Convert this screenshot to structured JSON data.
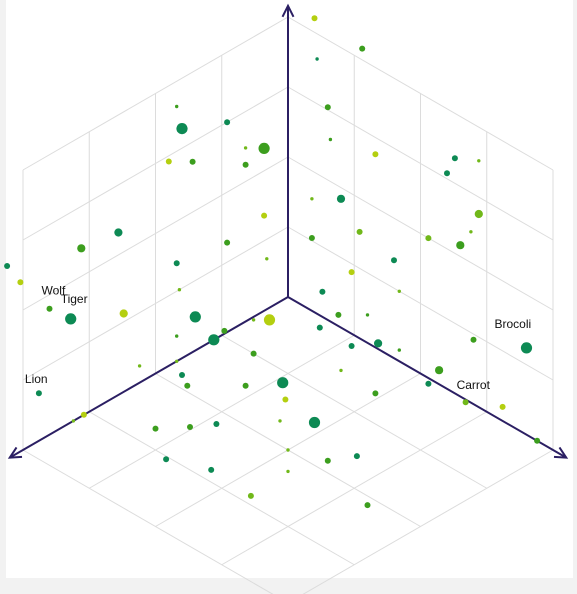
{
  "chart_data": {
    "type": "scatter",
    "projection": "3d-isometric",
    "title": "",
    "grid": true,
    "colors": {
      "axis": "#2b1f63",
      "grid": "#dcdcdc",
      "label": "#111111",
      "series": [
        "#0d8a54",
        "#3c9e1e",
        "#71b81a",
        "#b4cf10"
      ]
    },
    "labels": [
      {
        "text": "Wolf",
        "point": 1
      },
      {
        "text": "Tiger",
        "point": 2
      },
      {
        "text": "Lion",
        "point": 3
      },
      {
        "text": "Brocoli",
        "point": 4
      },
      {
        "text": "Carrot",
        "point": 5
      }
    ],
    "points": [
      {
        "x": 9.6,
        "y": -0.5,
        "z": 5.5,
        "size": 1,
        "color": 3
      },
      {
        "x": 9.0,
        "y": 0.0,
        "z": 4.5,
        "size": 1,
        "color": 1
      },
      {
        "x": 8.2,
        "y": 0.0,
        "z": 3.7,
        "size": 3,
        "color": 0
      },
      {
        "x": 9.4,
        "y": 0.0,
        "z": 1.7,
        "size": 1,
        "color": 0
      },
      {
        "x": 0.0,
        "y": 9.0,
        "z": 3.1,
        "size": 3,
        "color": 0
      },
      {
        "x": 0.0,
        "y": 8.1,
        "z": 0.5,
        "size": 1,
        "color": 3
      },
      {
        "x": 10.6,
        "y": 0.0,
        "z": 6.9,
        "size": 1,
        "color": 0
      },
      {
        "x": 7.8,
        "y": 0.0,
        "z": 6.0,
        "size": 2,
        "color": 1
      },
      {
        "x": 6.4,
        "y": 0.0,
        "z": 5.8,
        "size": 2,
        "color": 0
      },
      {
        "x": 6.2,
        "y": 0.0,
        "z": 2.8,
        "size": 2,
        "color": 3
      },
      {
        "x": 4.0,
        "y": 0.0,
        "z": 8.2,
        "size": 3,
        "color": 0
      },
      {
        "x": 4.2,
        "y": 0.0,
        "z": 9.1,
        "size": 0,
        "color": 1
      },
      {
        "x": 3.6,
        "y": 0.0,
        "z": 6.8,
        "size": 1,
        "color": 1
      },
      {
        "x": 4.5,
        "y": 0.0,
        "z": 7.3,
        "size": 1,
        "color": 3
      },
      {
        "x": 2.3,
        "y": 0.0,
        "z": 7.5,
        "size": 1,
        "color": 0
      },
      {
        "x": 1.6,
        "y": 0.0,
        "z": 6.2,
        "size": 0,
        "color": 2
      },
      {
        "x": 0.9,
        "y": 0.0,
        "z": 5.8,
        "size": 3,
        "color": 1
      },
      {
        "x": 1.6,
        "y": 0.0,
        "z": 5.6,
        "size": 1,
        "color": 1
      },
      {
        "x": 4.2,
        "y": 0.0,
        "z": 3.5,
        "size": 1,
        "color": 0
      },
      {
        "x": 4.1,
        "y": 0.0,
        "z": 2.5,
        "size": 0,
        "color": 2
      },
      {
        "x": 2.3,
        "y": 0.0,
        "z": 3.2,
        "size": 1,
        "color": 1
      },
      {
        "x": 0.9,
        "y": 0.0,
        "z": 3.4,
        "size": 1,
        "color": 3
      },
      {
        "x": 0.8,
        "y": 0.0,
        "z": 1.8,
        "size": 0,
        "color": 2
      },
      {
        "x": 3.5,
        "y": 0.0,
        "z": 1.2,
        "size": 3,
        "color": 0
      },
      {
        "x": 5.6,
        "y": 0.0,
        "z": 0.6,
        "size": 0,
        "color": 2
      },
      {
        "x": 4.2,
        "y": 0.0,
        "z": 0.9,
        "size": 0,
        "color": 1
      },
      {
        "x": 2.4,
        "y": 0.0,
        "z": 0.1,
        "size": 1,
        "color": 1
      },
      {
        "x": 4.0,
        "y": 0.0,
        "z": -0.6,
        "size": 1,
        "color": 0
      },
      {
        "x": 0.0,
        "y": 1.0,
        "z": 10.5,
        "size": 1,
        "color": 3
      },
      {
        "x": 0.0,
        "y": 2.8,
        "z": 10.4,
        "size": 1,
        "color": 1
      },
      {
        "x": 0.0,
        "y": 1.1,
        "z": 9.1,
        "size": 0,
        "color": 0
      },
      {
        "x": 0.0,
        "y": 1.5,
        "z": 7.6,
        "size": 1,
        "color": 1
      },
      {
        "x": 0.0,
        "y": 1.6,
        "z": 6.5,
        "size": 0,
        "color": 1
      },
      {
        "x": 0.0,
        "y": 3.3,
        "z": 6.9,
        "size": 1,
        "color": 3
      },
      {
        "x": 0.0,
        "y": 6.0,
        "z": 7.7,
        "size": 1,
        "color": 0
      },
      {
        "x": 0.0,
        "y": 6.9,
        "z": 6.1,
        "size": 0,
        "color": 2
      },
      {
        "x": 0.0,
        "y": 5.3,
        "z": 5.0,
        "size": 1,
        "color": 2
      },
      {
        "x": 0.0,
        "y": 6.5,
        "z": 5.4,
        "size": 2,
        "color": 1
      },
      {
        "x": 0.0,
        "y": 2.0,
        "z": 4.6,
        "size": 2,
        "color": 0
      },
      {
        "x": 0.0,
        "y": 0.9,
        "z": 4.0,
        "size": 0,
        "color": 2
      },
      {
        "x": 0.0,
        "y": 2.7,
        "z": 3.8,
        "size": 1,
        "color": 2
      },
      {
        "x": 0.0,
        "y": 4.0,
        "z": 3.5,
        "size": 1,
        "color": 0
      },
      {
        "x": 0.0,
        "y": 0.9,
        "z": 2.6,
        "size": 1,
        "color": 1
      },
      {
        "x": 0.0,
        "y": 2.4,
        "z": 2.2,
        "size": 1,
        "color": 3
      },
      {
        "x": 0.0,
        "y": 4.2,
        "z": 2.5,
        "size": 0,
        "color": 2
      },
      {
        "x": 0.0,
        "y": 3.0,
        "z": 1.0,
        "size": 0,
        "color": 1
      },
      {
        "x": 0.0,
        "y": 1.3,
        "z": 0.9,
        "size": 1,
        "color": 0
      },
      {
        "x": 0.0,
        "y": 1.9,
        "z": 0.4,
        "size": 1,
        "color": 1
      },
      {
        "x": 0.0,
        "y": 3.4,
        "z": 0.2,
        "size": 2,
        "color": 0
      },
      {
        "x": 0.0,
        "y": 4.2,
        "z": 0.4,
        "size": 0,
        "color": 1
      },
      {
        "x": 0.0,
        "y": 5.7,
        "z": 0.5,
        "size": 2,
        "color": 1
      },
      {
        "x": 0.0,
        "y": 5.3,
        "z": -0.2,
        "size": 1,
        "color": 0
      },
      {
        "x": 0.0,
        "y": 6.7,
        "z": -0.1,
        "size": 1,
        "color": 2
      },
      {
        "x": 0.0,
        "y": 9.4,
        "z": 0.0,
        "size": 1,
        "color": 1
      },
      {
        "x": 0.0,
        "y": 7.0,
        "z": 2.3,
        "size": 1,
        "color": 1
      },
      {
        "x": 0.0,
        "y": 7.2,
        "z": 6.9,
        "size": 2,
        "color": 2
      },
      {
        "x": 0.0,
        "y": 6.3,
        "z": 8.4,
        "size": 1,
        "color": 0
      },
      {
        "x": 0.0,
        "y": 7.2,
        "z": 8.8,
        "size": 0,
        "color": 2
      },
      {
        "x": 1.1,
        "y": 0.4,
        "z": 0.0,
        "size": 3,
        "color": 3
      },
      {
        "x": 0.4,
        "y": 1.6,
        "z": 0.0,
        "size": 1,
        "color": 0
      },
      {
        "x": 1.4,
        "y": 0.1,
        "z": 0.0,
        "size": 0,
        "color": 2
      },
      {
        "x": 0.4,
        "y": 2.8,
        "z": 0.0,
        "size": 1,
        "color": 0
      },
      {
        "x": 2.8,
        "y": 0.0,
        "z": 0.0,
        "size": 3,
        "color": 0
      },
      {
        "x": 2.5,
        "y": 1.2,
        "z": 0.0,
        "size": 1,
        "color": 1
      },
      {
        "x": 1.4,
        "y": 3.4,
        "z": 0.0,
        "size": 0,
        "color": 2
      },
      {
        "x": 1.5,
        "y": 4.8,
        "z": 0.0,
        "size": 1,
        "color": 1
      },
      {
        "x": 2.9,
        "y": 2.7,
        "z": 0.0,
        "size": 3,
        "color": 0
      },
      {
        "x": 3.7,
        "y": 2.1,
        "z": 0.0,
        "size": 1,
        "color": 1
      },
      {
        "x": 4.2,
        "y": 0.0,
        "z": 0.0,
        "size": 0,
        "color": 2
      },
      {
        "x": 4.8,
        "y": 1.0,
        "z": 0.0,
        "size": 1,
        "color": 1
      },
      {
        "x": 3.6,
        "y": 4.6,
        "z": 0.0,
        "size": 3,
        "color": 0
      },
      {
        "x": 3.4,
        "y": 3.3,
        "z": 0.0,
        "size": 1,
        "color": 3
      },
      {
        "x": 4.2,
        "y": 3.9,
        "z": 0.0,
        "size": 0,
        "color": 2
      },
      {
        "x": 3.9,
        "y": 6.5,
        "z": 0.0,
        "size": 1,
        "color": 0
      },
      {
        "x": 4.6,
        "y": 6.1,
        "z": 0.0,
        "size": 1,
        "color": 1
      },
      {
        "x": 5.5,
        "y": 2.8,
        "z": 0.0,
        "size": 1,
        "color": 0
      },
      {
        "x": 5.0,
        "y": 5.0,
        "z": 0.0,
        "size": 0,
        "color": 2
      },
      {
        "x": 6.1,
        "y": 2.4,
        "z": 0.0,
        "size": 1,
        "color": 1
      },
      {
        "x": 5.3,
        "y": 8.3,
        "z": 0.0,
        "size": 1,
        "color": 1
      },
      {
        "x": 6.8,
        "y": 1.8,
        "z": 0.0,
        "size": 1,
        "color": 1
      },
      {
        "x": 7.1,
        "y": 4.2,
        "z": 0.0,
        "size": 1,
        "color": 0
      },
      {
        "x": 7.7,
        "y": 0.0,
        "z": 0.0,
        "size": 1,
        "color": 3
      },
      {
        "x": 8.1,
        "y": 0.0,
        "z": 0.0,
        "size": 0,
        "color": 2
      },
      {
        "x": 7.6,
        "y": 3.0,
        "z": 0.0,
        "size": 1,
        "color": 0
      },
      {
        "x": 7.2,
        "y": 5.8,
        "z": 0.0,
        "size": 1,
        "color": 2
      },
      {
        "x": 5.7,
        "y": 5.7,
        "z": 0.0,
        "size": 0,
        "color": 2
      }
    ]
  }
}
